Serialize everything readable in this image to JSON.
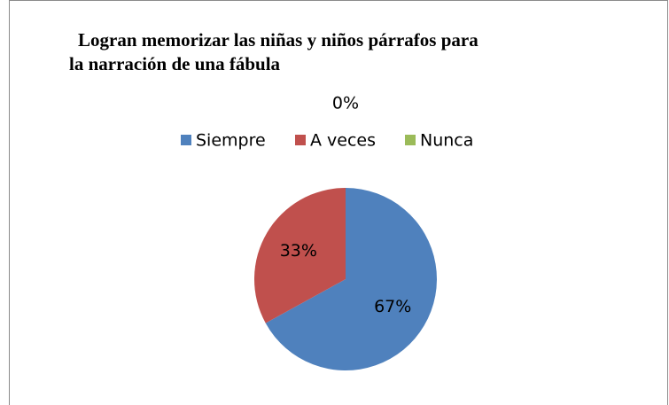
{
  "chart_data": {
    "type": "pie",
    "title": [
      "Logran memorizar las niñas y niños párrafos para",
      "la narración de una fábula"
    ],
    "categories": [
      "Siempre",
      "A veces",
      "Nunca"
    ],
    "values": [
      67,
      33,
      0
    ],
    "value_labels": [
      "67%",
      "33%",
      "0%"
    ],
    "colors": [
      "#4f81bd",
      "#c0504d",
      "#9bbb59"
    ],
    "legend": "top"
  }
}
